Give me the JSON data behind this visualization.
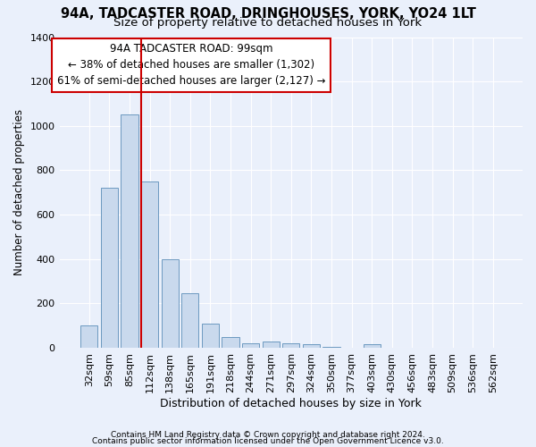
{
  "title1": "94A, TADCASTER ROAD, DRINGHOUSES, YORK, YO24 1LT",
  "title2": "Size of property relative to detached houses in York",
  "xlabel": "Distribution of detached houses by size in York",
  "ylabel": "Number of detached properties",
  "categories": [
    "32sqm",
    "59sqm",
    "85sqm",
    "112sqm",
    "138sqm",
    "165sqm",
    "191sqm",
    "218sqm",
    "244sqm",
    "271sqm",
    "297sqm",
    "324sqm",
    "350sqm",
    "377sqm",
    "403sqm",
    "430sqm",
    "456sqm",
    "483sqm",
    "509sqm",
    "536sqm",
    "562sqm"
  ],
  "values": [
    100,
    720,
    1050,
    750,
    400,
    245,
    110,
    48,
    20,
    28,
    20,
    15,
    5,
    0,
    15,
    0,
    0,
    0,
    0,
    0,
    0
  ],
  "bar_color": "#c9d9ed",
  "bar_edge_color": "#5b8db8",
  "vline_color": "#cc0000",
  "vline_index": 3,
  "annotation_line1": "94A TADCASTER ROAD: 99sqm",
  "annotation_line2": "← 38% of detached houses are smaller (1,302)",
  "annotation_line3": "61% of semi-detached houses are larger (2,127) →",
  "annotation_box_color": "#ffffff",
  "annotation_box_edge": "#cc0000",
  "background_color": "#eaf0fb",
  "grid_color": "#ffffff",
  "footer1": "Contains HM Land Registry data © Crown copyright and database right 2024.",
  "footer2": "Contains public sector information licensed under the Open Government Licence v3.0.",
  "ylim": [
    0,
    1400
  ],
  "yticks": [
    0,
    200,
    400,
    600,
    800,
    1000,
    1200,
    1400
  ],
  "title1_fontsize": 10.5,
  "title2_fontsize": 9.5,
  "xlabel_fontsize": 9,
  "ylabel_fontsize": 8.5,
  "tick_fontsize": 8,
  "annotation_fontsize": 8.5,
  "footer_fontsize": 6.5
}
